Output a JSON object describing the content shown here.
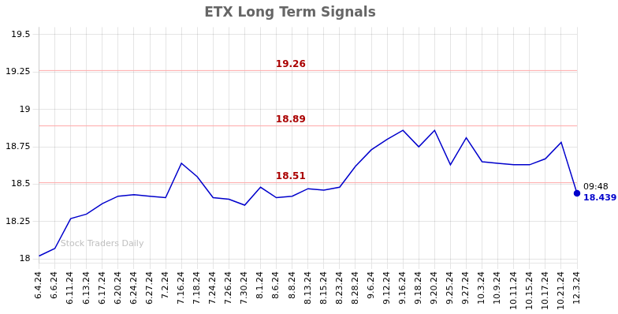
{
  "chart_data": {
    "type": "line",
    "title": "ETX Long Term Signals",
    "watermark": "Stock Traders Daily",
    "categories": [
      "6.4.24",
      "6.6.24",
      "6.11.24",
      "6.13.24",
      "6.17.24",
      "6.20.24",
      "6.24.24",
      "6.27.24",
      "7.2.24",
      "7.16.24",
      "7.18.24",
      "7.24.24",
      "7.26.24",
      "7.30.24",
      "8.1.24",
      "8.6.24",
      "8.8.24",
      "8.13.24",
      "8.15.24",
      "8.23.24",
      "8.28.24",
      "9.6.24",
      "9.12.24",
      "9.16.24",
      "9.18.24",
      "9.20.24",
      "9.25.24",
      "9.27.24",
      "10.3.24",
      "10.9.24",
      "10.11.24",
      "10.15.24",
      "10.17.24",
      "10.21.24",
      "12.3.24"
    ],
    "values": [
      18.02,
      18.07,
      18.27,
      18.3,
      18.37,
      18.42,
      18.43,
      18.42,
      18.41,
      18.64,
      18.55,
      18.41,
      18.4,
      18.36,
      18.48,
      18.41,
      18.42,
      18.47,
      18.46,
      18.48,
      18.62,
      18.73,
      18.8,
      18.86,
      18.75,
      18.86,
      18.63,
      18.81,
      18.65,
      18.64,
      18.63,
      18.63,
      18.67,
      18.78,
      18.439
    ],
    "color": "#0000cc",
    "hlines": [
      {
        "y": 19.26,
        "label": "19.26",
        "color": "#ffaaaa",
        "label_color": "#aa0000"
      },
      {
        "y": 18.89,
        "label": "18.89",
        "color": "#ffaaaa",
        "label_color": "#aa0000"
      },
      {
        "y": 18.51,
        "label": "18.51",
        "color": "#ffaaaa",
        "label_color": "#aa0000"
      }
    ],
    "annotations": [
      {
        "text": "09:48",
        "x": "12.3.24",
        "y": 18.439
      },
      {
        "text": "18.439",
        "x": "12.3.24",
        "y": 18.439,
        "color": "#0000cc"
      }
    ],
    "ylim": [
      17.975,
      19.55
    ],
    "yticks": [
      18,
      18.25,
      18.5,
      18.75,
      19,
      19.25,
      19.5
    ],
    "grid": true
  }
}
